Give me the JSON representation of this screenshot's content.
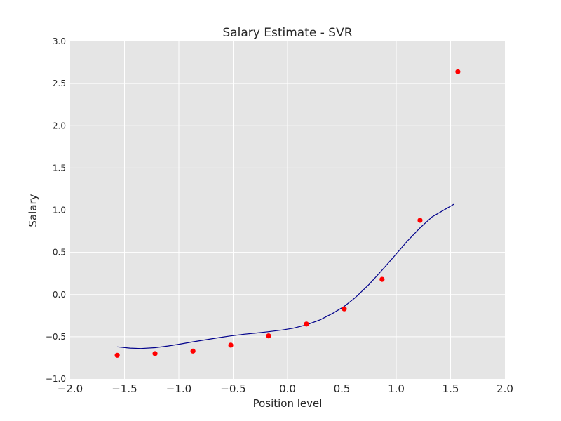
{
  "chart_data": {
    "type": "scatter",
    "title": "Salary Estimate - SVR",
    "xlabel": "Position level",
    "ylabel": "Salary",
    "xlim": [
      -2.0,
      2.0
    ],
    "ylim": [
      -1.0,
      3.0
    ],
    "x_ticks": [
      "−2.0",
      "−1.5",
      "−1.0",
      "−0.5",
      "0.0",
      "0.5",
      "1.0",
      "1.5",
      "2.0"
    ],
    "y_ticks": [
      "−1.0",
      "−0.5",
      "0.0",
      "0.5",
      "1.0",
      "1.5",
      "2.0",
      "2.5",
      "3.0"
    ],
    "grid": true,
    "background_color": "#e5e5e5",
    "grid_color": "#ffffff",
    "points": {
      "color": "#ff0000",
      "x": [
        -1.567,
        -1.219,
        -0.87,
        -0.522,
        -0.174,
        0.174,
        0.522,
        0.87,
        1.219,
        1.567
      ],
      "y": [
        -0.72,
        -0.7,
        -0.67,
        -0.6,
        -0.49,
        -0.35,
        -0.17,
        0.18,
        0.88,
        2.64
      ]
    },
    "curve": {
      "color": "#00008b",
      "x": [
        -1.567,
        -1.45,
        -1.35,
        -1.219,
        -1.1,
        -0.98,
        -0.87,
        -0.75,
        -0.63,
        -0.522,
        -0.4,
        -0.28,
        -0.174,
        -0.05,
        0.05,
        0.174,
        0.3,
        0.42,
        0.522,
        0.62,
        0.75,
        0.87,
        1.0,
        1.1,
        1.219,
        1.33,
        1.45,
        1.53
      ],
      "y": [
        -0.62,
        -0.635,
        -0.64,
        -0.63,
        -0.61,
        -0.585,
        -0.56,
        -0.535,
        -0.51,
        -0.49,
        -0.47,
        -0.455,
        -0.44,
        -0.42,
        -0.4,
        -0.36,
        -0.3,
        -0.22,
        -0.14,
        -0.04,
        0.12,
        0.29,
        0.48,
        0.63,
        0.79,
        0.92,
        1.01,
        1.07
      ]
    }
  }
}
